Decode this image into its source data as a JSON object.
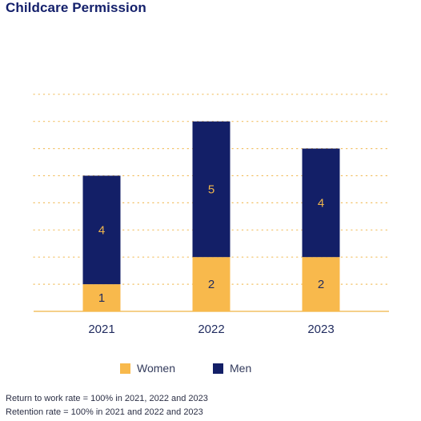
{
  "title": "Childcare Permission",
  "chart_data": {
    "type": "bar",
    "stacked": true,
    "categories": [
      "2021",
      "2022",
      "2023"
    ],
    "series": [
      {
        "name": "Women",
        "values": [
          1,
          2,
          2
        ],
        "color": "#f8b94c",
        "label_color": "#1f2a5e"
      },
      {
        "name": "Men",
        "values": [
          4,
          5,
          4
        ],
        "color": "#131f67",
        "label_color": "#f0b64c"
      }
    ],
    "ylim": [
      0,
      8
    ],
    "grid": true,
    "legend_position": "bottom-center"
  },
  "notes": [
    "Return to work rate = 100% in 2021, 2022 and 2023",
    "Retention rate = 100% in 2021 and 2022 and 2023"
  ],
  "colors": {
    "gridline": "#f2c063",
    "axis": "#f2c063",
    "title": "#14206b"
  }
}
